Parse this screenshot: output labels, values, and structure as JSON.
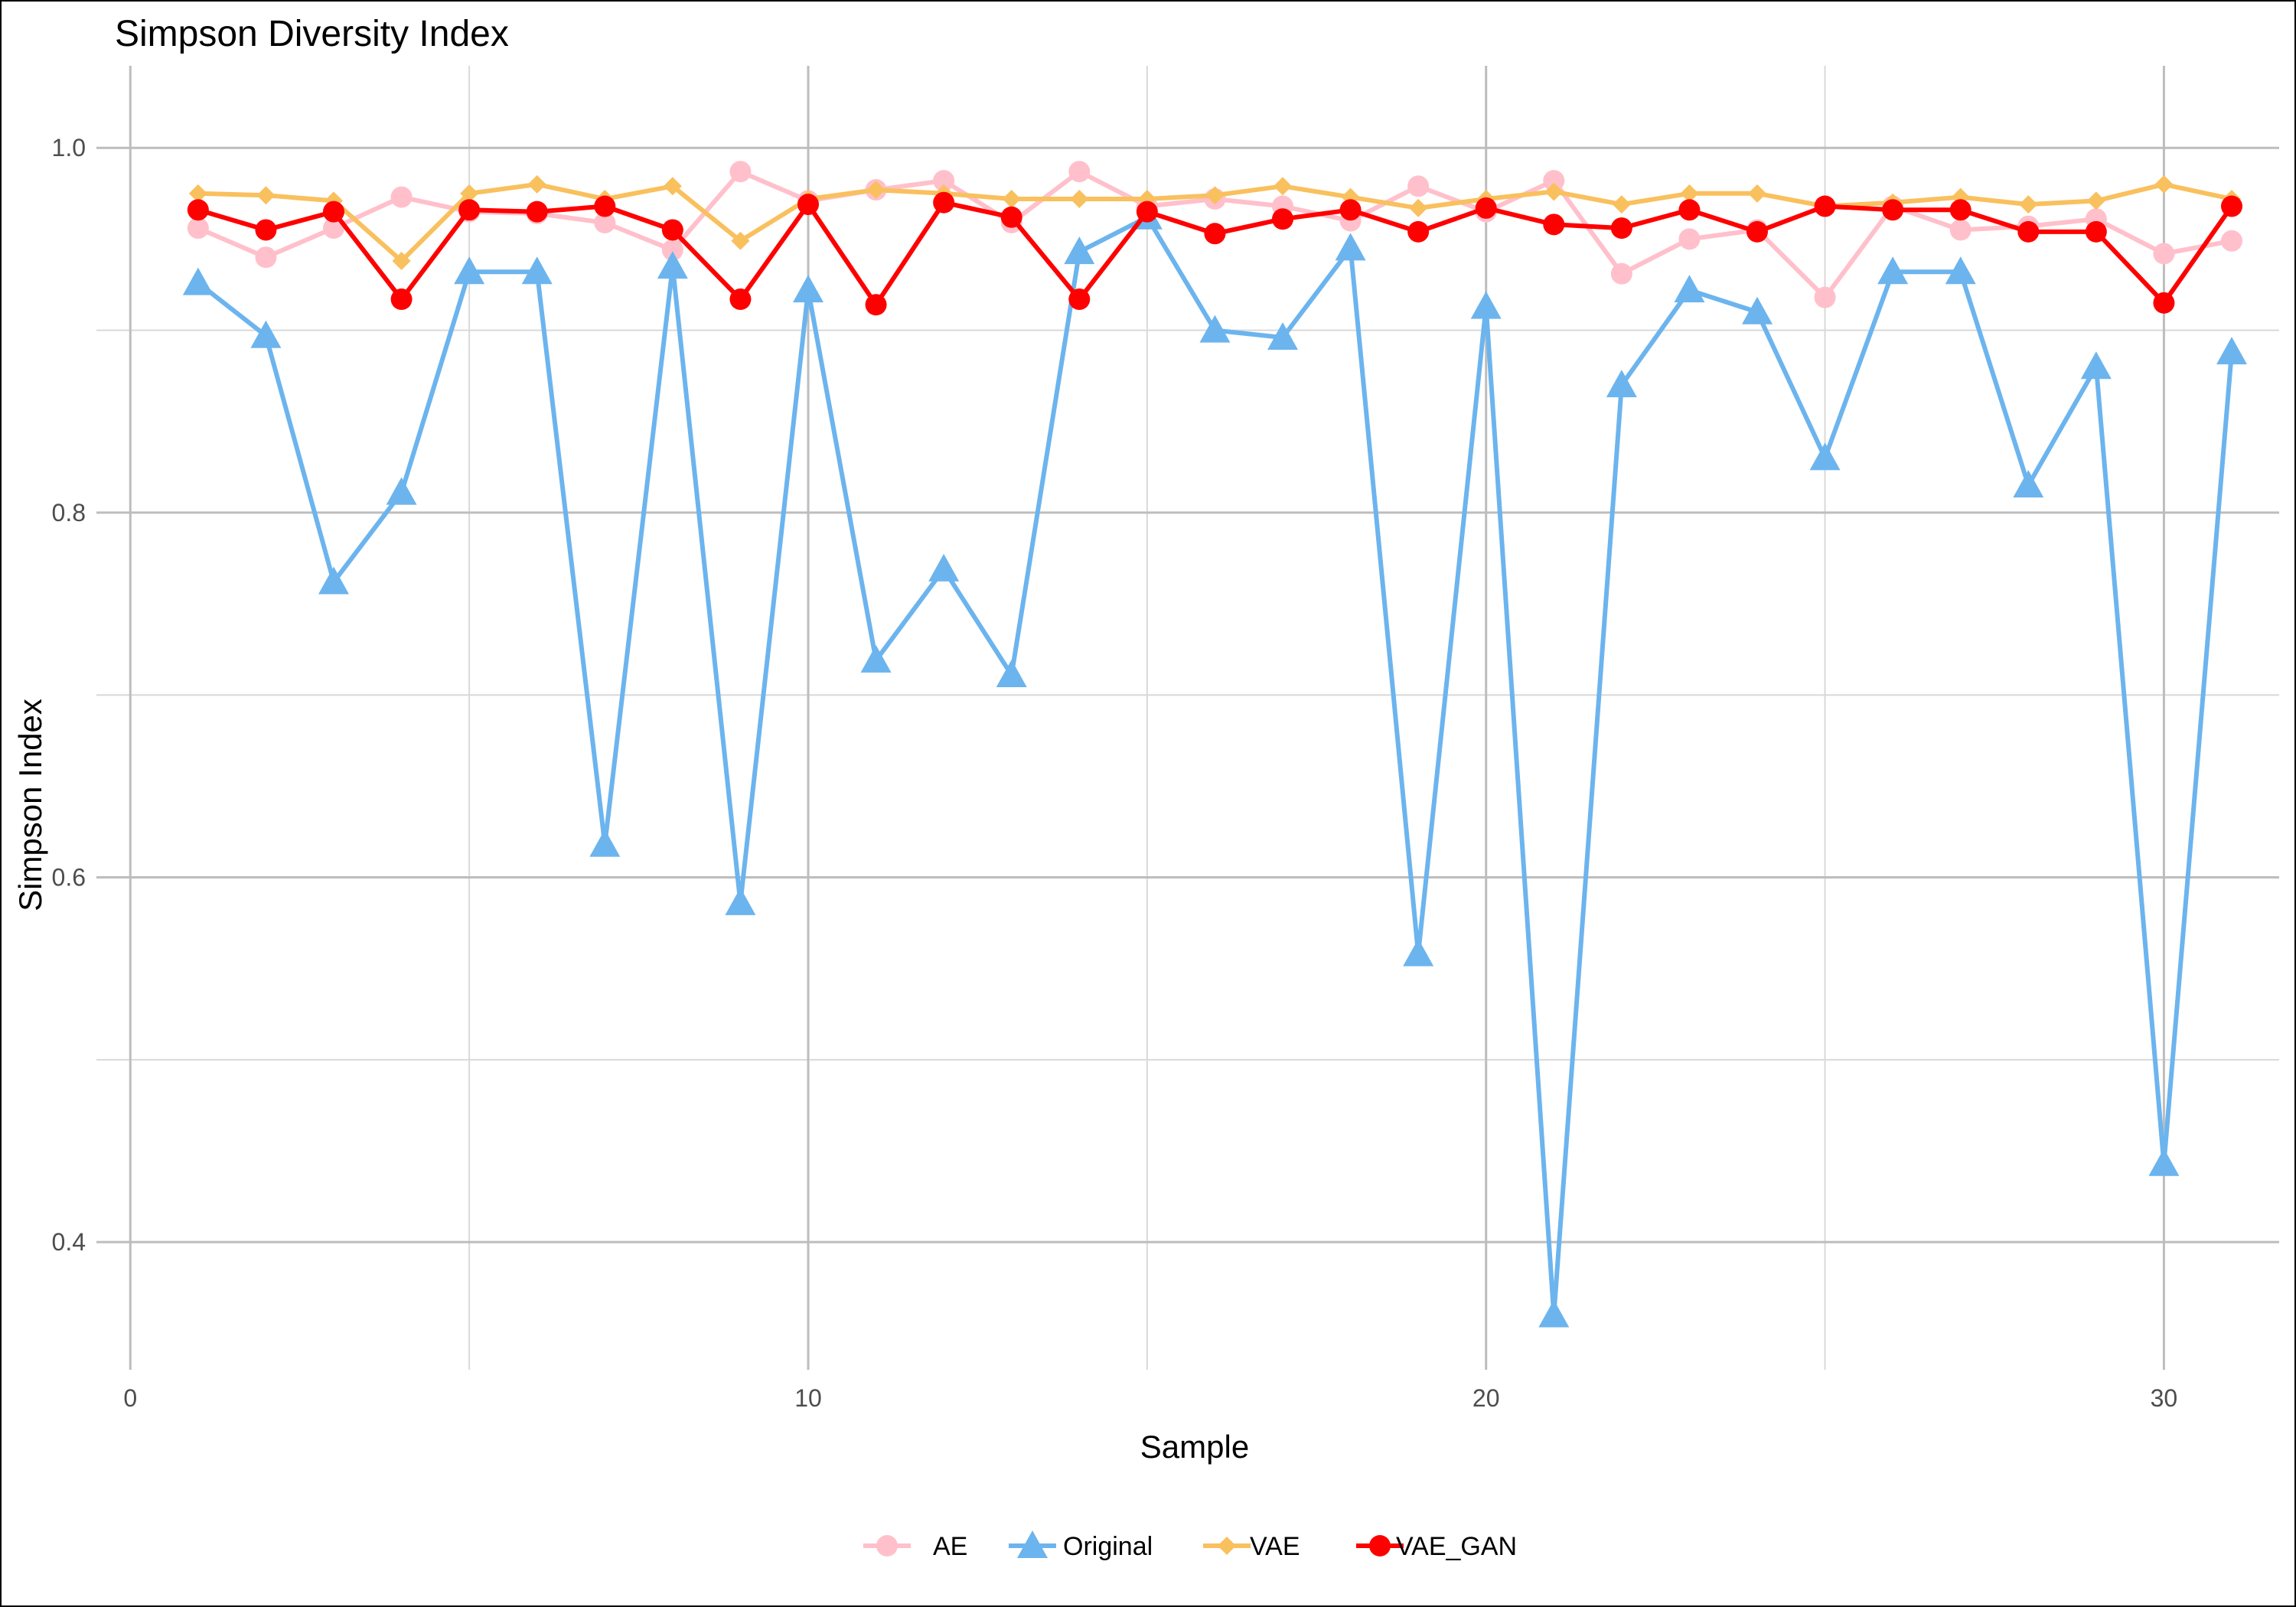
{
  "chart_data": {
    "type": "line",
    "title": "Simpson Diversity Index",
    "xlabel": "Sample",
    "ylabel": "Simpson Index",
    "xlim": [
      -0.5,
      31.7
    ],
    "ylim": [
      0.33,
      1.045
    ],
    "x_ticks": [
      0,
      10,
      20,
      30
    ],
    "y_ticks": [
      0.4,
      0.6,
      0.8,
      1.0
    ],
    "y_tick_labels": [
      "0.4",
      "0.6",
      "0.8",
      "1.0"
    ],
    "grid": true,
    "legend_position": "bottom",
    "x": [
      1,
      2,
      3,
      4,
      5,
      6,
      7,
      8,
      9,
      10,
      11,
      12,
      13,
      14,
      15,
      16,
      17,
      18,
      19,
      20,
      21,
      22,
      23,
      24,
      25,
      26,
      27,
      28,
      29,
      30,
      31
    ],
    "series": [
      {
        "name": "AE",
        "color": "#FFC0CB",
        "marker": "circle",
        "values": [
          0.956,
          0.94,
          0.956,
          0.973,
          0.965,
          0.964,
          0.959,
          0.944,
          0.987,
          0.971,
          0.977,
          0.982,
          0.959,
          0.987,
          0.968,
          0.972,
          0.968,
          0.96,
          0.979,
          0.965,
          0.982,
          0.931,
          0.95,
          0.955,
          0.918,
          0.968,
          0.955,
          0.957,
          0.961,
          0.942,
          0.949
        ]
      },
      {
        "name": "Original",
        "color": "#6CB4EE",
        "marker": "triangle",
        "values": [
          0.926,
          0.897,
          0.762,
          0.811,
          0.932,
          0.932,
          0.618,
          0.935,
          0.586,
          0.922,
          0.719,
          0.769,
          0.711,
          0.943,
          0.962,
          0.9,
          0.896,
          0.945,
          0.558,
          0.913,
          0.36,
          0.87,
          0.922,
          0.91,
          0.83,
          0.932,
          0.932,
          0.815,
          0.88,
          0.443,
          0.888
        ]
      },
      {
        "name": "VAE",
        "color": "#F9C05E",
        "marker": "diamond",
        "values": [
          0.975,
          0.974,
          0.971,
          0.938,
          0.975,
          0.98,
          0.972,
          0.979,
          0.949,
          0.972,
          0.977,
          0.975,
          0.972,
          0.972,
          0.972,
          0.974,
          0.979,
          0.973,
          0.967,
          0.972,
          0.976,
          0.969,
          0.975,
          0.975,
          0.968,
          0.97,
          0.973,
          0.969,
          0.971,
          0.98,
          0.972
        ]
      },
      {
        "name": "VAE_GAN",
        "color": "#FF0000",
        "marker": "circle",
        "values": [
          0.966,
          0.955,
          0.965,
          0.917,
          0.966,
          0.965,
          0.968,
          0.955,
          0.917,
          0.969,
          0.914,
          0.97,
          0.962,
          0.917,
          0.965,
          0.953,
          0.961,
          0.966,
          0.954,
          0.967,
          0.958,
          0.956,
          0.966,
          0.954,
          0.968,
          0.966,
          0.966,
          0.954,
          0.954,
          0.915,
          0.968
        ]
      }
    ]
  }
}
